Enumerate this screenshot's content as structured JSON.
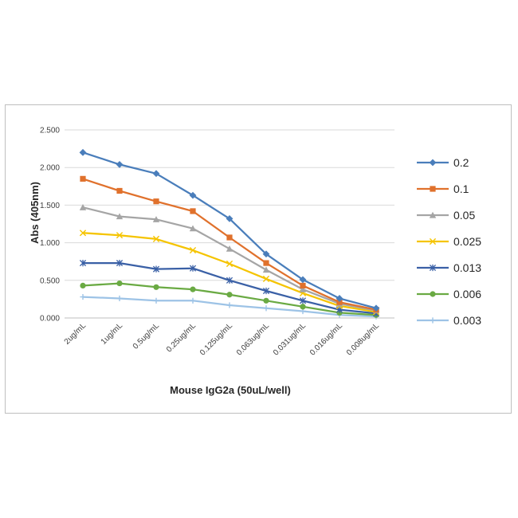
{
  "chart_data": {
    "type": "line",
    "title": "",
    "xlabel": "Mouse IgG2a (50uL/well)",
    "ylabel": "Abs (405nm)",
    "ylim": [
      0,
      2.5
    ],
    "yticks": [
      "0.000",
      "0.500",
      "1.000",
      "1.500",
      "2.000",
      "2.500"
    ],
    "grid": true,
    "legend": "right",
    "categories": [
      "2ug/mL",
      "1ug/mL",
      "0.5ug/mL",
      "0.25ug/mL",
      "0.125ug/mL",
      "0.063ug/mL",
      "0.031ug/mL",
      "0.016ug/mL",
      "0.008ug/mL"
    ],
    "series": [
      {
        "name": "0.2",
        "color": "#4a7ebb",
        "marker": "diamond",
        "values": [
          2.2,
          2.04,
          1.92,
          1.63,
          1.32,
          0.85,
          0.51,
          0.26,
          0.13
        ]
      },
      {
        "name": "0.1",
        "color": "#e0712c",
        "marker": "square",
        "values": [
          1.85,
          1.69,
          1.55,
          1.42,
          1.07,
          0.73,
          0.43,
          0.21,
          0.11
        ]
      },
      {
        "name": "0.05",
        "color": "#a5a5a5",
        "marker": "triangle",
        "values": [
          1.47,
          1.35,
          1.31,
          1.19,
          0.92,
          0.64,
          0.38,
          0.19,
          0.1
        ]
      },
      {
        "name": "0.025",
        "color": "#f5c400",
        "marker": "x",
        "values": [
          1.13,
          1.1,
          1.05,
          0.9,
          0.72,
          0.52,
          0.33,
          0.16,
          0.08
        ]
      },
      {
        "name": "0.013",
        "color": "#3a60a6",
        "marker": "star",
        "values": [
          0.73,
          0.73,
          0.65,
          0.66,
          0.5,
          0.36,
          0.23,
          0.11,
          0.06
        ]
      },
      {
        "name": "0.006",
        "color": "#6aaa43",
        "marker": "circle",
        "values": [
          0.43,
          0.46,
          0.41,
          0.38,
          0.31,
          0.23,
          0.15,
          0.07,
          0.04
        ]
      },
      {
        "name": "0.003",
        "color": "#9dc3e6",
        "marker": "plus",
        "values": [
          0.28,
          0.26,
          0.23,
          0.23,
          0.17,
          0.13,
          0.09,
          0.04,
          0.02
        ]
      }
    ]
  }
}
